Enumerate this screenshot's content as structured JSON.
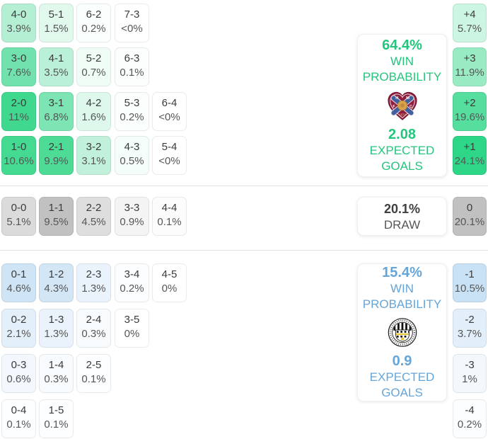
{
  "colors": {
    "home_accent": "#24c57c",
    "away_accent": "#66a5d8",
    "home_full": "#2ed687",
    "away_full": "#aecff0",
    "draw_full": "#c1c1c1",
    "separator": "#e3e3e3"
  },
  "home_grid": [
    {
      "row": 0,
      "col": 0,
      "score": "4-0",
      "pct": "3.9%",
      "bg": "#b4efd4"
    },
    {
      "row": 0,
      "col": 1,
      "score": "5-1",
      "pct": "1.5%",
      "bg": "#e1f8ed"
    },
    {
      "row": 0,
      "col": 2,
      "score": "6-2",
      "pct": "0.2%",
      "bg": "#fafefc"
    },
    {
      "row": 0,
      "col": 3,
      "score": "7-3",
      "pct": "<0%",
      "bg": "#ffffff"
    },
    {
      "row": 1,
      "col": 0,
      "score": "3-0",
      "pct": "7.6%",
      "bg": "#71e2ad"
    },
    {
      "row": 1,
      "col": 1,
      "score": "4-1",
      "pct": "3.5%",
      "bg": "#baf0d7"
    },
    {
      "row": 1,
      "col": 2,
      "score": "5-2",
      "pct": "0.7%",
      "bg": "#f0fdf7"
    },
    {
      "row": 1,
      "col": 3,
      "score": "6-3",
      "pct": "0.1%",
      "bg": "#fcfefd"
    },
    {
      "row": 2,
      "col": 0,
      "score": "2-0",
      "pct": "11%",
      "bg": "#3fd88e"
    },
    {
      "row": 2,
      "col": 1,
      "score": "3-1",
      "pct": "6.8%",
      "bg": "#7de4b4"
    },
    {
      "row": 2,
      "col": 2,
      "score": "4-2",
      "pct": "1.6%",
      "bg": "#def8ec"
    },
    {
      "row": 2,
      "col": 3,
      "score": "5-3",
      "pct": "0.2%",
      "bg": "#fafefc"
    },
    {
      "row": 2,
      "col": 4,
      "score": "6-4",
      "pct": "<0%",
      "bg": "#ffffff"
    },
    {
      "row": 3,
      "col": 0,
      "score": "1-0",
      "pct": "10.6%",
      "bg": "#44da91"
    },
    {
      "row": 3,
      "col": 1,
      "score": "2-1",
      "pct": "9.9%",
      "bg": "#4edb96"
    },
    {
      "row": 3,
      "col": 2,
      "score": "3-2",
      "pct": "3.1%",
      "bg": "#c1f1da"
    },
    {
      "row": 3,
      "col": 3,
      "score": "4-3",
      "pct": "0.5%",
      "bg": "#f4fdf9"
    },
    {
      "row": 3,
      "col": 4,
      "score": "5-4",
      "pct": "<0%",
      "bg": "#ffffff"
    }
  ],
  "draw_row": [
    {
      "row": 0,
      "col": 0,
      "score": "0-0",
      "pct": "5.1%",
      "bg": "#dbdbdb"
    },
    {
      "row": 0,
      "col": 1,
      "score": "1-1",
      "pct": "9.5%",
      "bg": "#c1c1c1"
    },
    {
      "row": 0,
      "col": 2,
      "score": "2-2",
      "pct": "4.5%",
      "bg": "#dedede"
    },
    {
      "row": 0,
      "col": 3,
      "score": "3-3",
      "pct": "0.9%",
      "bg": "#f4f4f4"
    },
    {
      "row": 0,
      "col": 4,
      "score": "4-4",
      "pct": "0.1%",
      "bg": "#fcfcfc"
    }
  ],
  "away_grid": [
    {
      "row": 0,
      "col": 0,
      "score": "0-1",
      "pct": "4.6%",
      "bg": "#cfe4f5"
    },
    {
      "row": 0,
      "col": 1,
      "score": "1-2",
      "pct": "4.3%",
      "bg": "#d2e6f6"
    },
    {
      "row": 0,
      "col": 2,
      "score": "2-3",
      "pct": "1.3%",
      "bg": "#eaf3fb"
    },
    {
      "row": 0,
      "col": 3,
      "score": "3-4",
      "pct": "0.2%",
      "bg": "#fcfdfe"
    },
    {
      "row": 0,
      "col": 4,
      "score": "4-5",
      "pct": "0%",
      "bg": "#ffffff"
    },
    {
      "row": 1,
      "col": 0,
      "score": "0-2",
      "pct": "2.1%",
      "bg": "#e3eff9"
    },
    {
      "row": 1,
      "col": 1,
      "score": "1-3",
      "pct": "1.3%",
      "bg": "#eaf3fb"
    },
    {
      "row": 1,
      "col": 2,
      "score": "2-4",
      "pct": "0.3%",
      "bg": "#f7fbfd"
    },
    {
      "row": 1,
      "col": 3,
      "score": "3-5",
      "pct": "0%",
      "bg": "#ffffff"
    },
    {
      "row": 2,
      "col": 0,
      "score": "0-3",
      "pct": "0.6%",
      "bg": "#f2f8fd"
    },
    {
      "row": 2,
      "col": 1,
      "score": "1-4",
      "pct": "0.3%",
      "bg": "#f7fbfd"
    },
    {
      "row": 2,
      "col": 2,
      "score": "2-5",
      "pct": "0.1%",
      "bg": "#fdfeff"
    },
    {
      "row": 3,
      "col": 0,
      "score": "0-4",
      "pct": "0.1%",
      "bg": "#fdfeff"
    },
    {
      "row": 3,
      "col": 1,
      "score": "1-5",
      "pct": "0.1%",
      "bg": "#fdfeff"
    }
  ],
  "home_margin": [
    {
      "row": 0,
      "col": 0,
      "score": "+4",
      "pct": "5.7%",
      "bg": "#ccf5e2"
    },
    {
      "row": 1,
      "col": 0,
      "score": "+3",
      "pct": "11.9%",
      "bg": "#99ebc4"
    },
    {
      "row": 2,
      "col": 0,
      "score": "+2",
      "pct": "19.6%",
      "bg": "#56de9e"
    },
    {
      "row": 3,
      "col": 0,
      "score": "+1",
      "pct": "24.1%",
      "bg": "#2ed687"
    }
  ],
  "draw_margin": [
    {
      "row": 0,
      "col": 0,
      "score": "0",
      "pct": "20.1%",
      "bg": "#c1c1c1"
    }
  ],
  "away_margin": [
    {
      "row": 0,
      "col": 0,
      "score": "-1",
      "pct": "10.5%",
      "bg": "#c9e1f4"
    },
    {
      "row": 1,
      "col": 0,
      "score": "-2",
      "pct": "3.7%",
      "bg": "#e2eef9"
    },
    {
      "row": 2,
      "col": 0,
      "score": "-3",
      "pct": "1%",
      "bg": "#f3f8fd"
    },
    {
      "row": 3,
      "col": 0,
      "score": "-4",
      "pct": "0.2%",
      "bg": "#fcfdfe"
    }
  ],
  "home_panel": {
    "win_probability": "64.4%",
    "win_label": "WIN",
    "probability_label": "PROBABILITY",
    "crest_icon": "hearts-crest",
    "expected_goals": "2.08",
    "expected_label": "EXPECTED",
    "goals_label": "GOALS"
  },
  "draw_panel": {
    "probability": "20.1%",
    "label": "DRAW"
  },
  "away_panel": {
    "win_probability": "15.4%",
    "win_label": "WIN",
    "probability_label": "PROBABILITY",
    "crest_icon": "st-mirren-crest",
    "expected_goals": "0.9",
    "expected_label": "EXPECTED",
    "goals_label": "GOALS"
  }
}
